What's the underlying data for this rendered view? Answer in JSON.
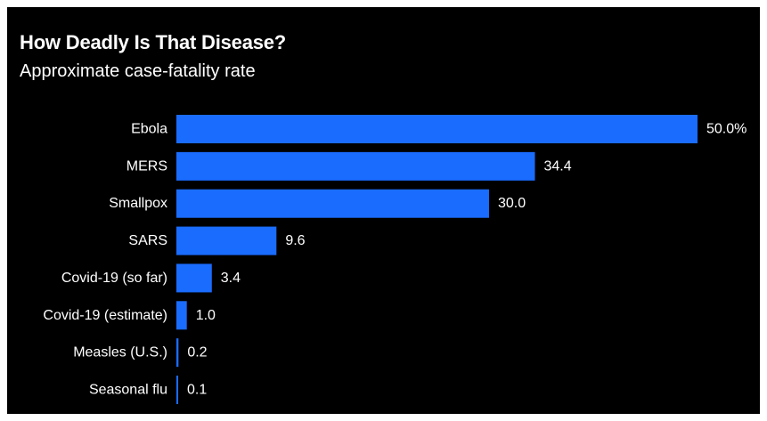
{
  "title": "How Deadly Is That Disease?",
  "subtitle": "Approximate case-fatality rate",
  "colors": {
    "background": "#000000",
    "bar": "#1a6cff",
    "text": "#ffffff"
  },
  "chart_data": {
    "type": "bar",
    "orientation": "horizontal",
    "categories": [
      "Ebola",
      "MERS",
      "Smallpox",
      "SARS",
      "Covid-19 (so far)",
      "Covid-19 (estimate)",
      "Measles (U.S.)",
      "Seasonal flu"
    ],
    "values": [
      50.0,
      34.4,
      30.0,
      9.6,
      3.4,
      1.0,
      0.2,
      0.1
    ],
    "value_labels": [
      "50.0%",
      "34.4",
      "30.0",
      "9.6",
      "3.4",
      "1.0",
      "0.2",
      "0.1"
    ],
    "xlim": [
      0,
      50
    ],
    "grid": false,
    "legend": "none",
    "title": "How Deadly Is That Disease?",
    "subtitle": "Approximate case-fatality rate"
  }
}
